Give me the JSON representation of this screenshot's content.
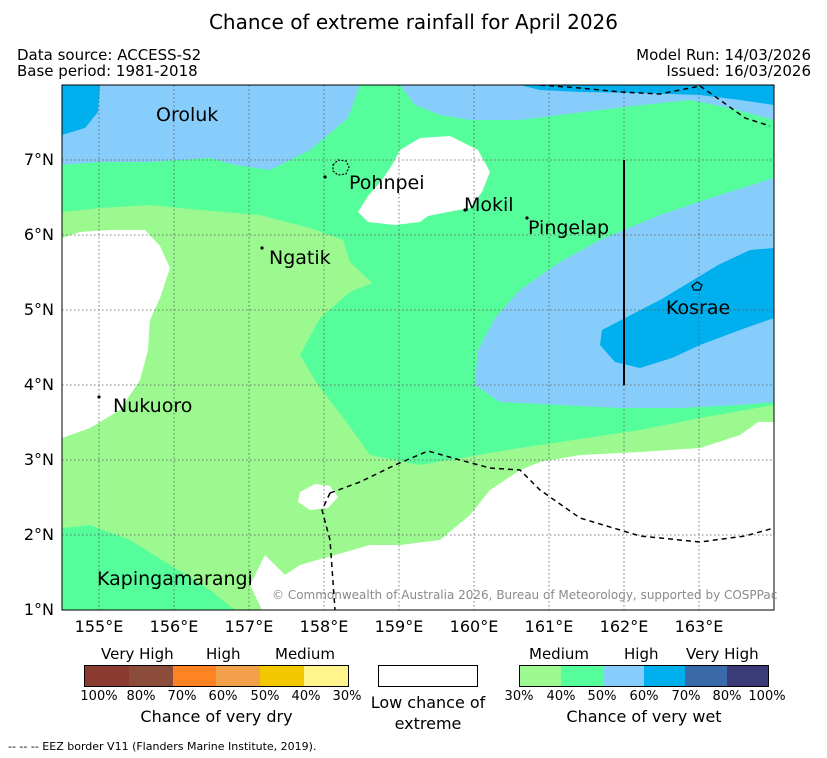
{
  "title": "Chance of extreme rainfall for April 2026",
  "header": {
    "data_source": "Data source: ACCESS-S2",
    "base_period": "Base period: 1981-2018",
    "model_run": "Model Run: 14/03/2026",
    "issued": "Issued: 16/03/2026"
  },
  "map": {
    "lat_labels": [
      "7°N",
      "6°N",
      "5°N",
      "4°N",
      "3°N",
      "2°N",
      "1°N"
    ],
    "lon_labels": [
      "155°E",
      "156°E",
      "157°E",
      "158°E",
      "159°E",
      "160°E",
      "161°E",
      "162°E",
      "163°E"
    ],
    "places": {
      "oroluk": "Oroluk",
      "pohnpei": "Pohnpei",
      "mokil": "Mokil",
      "pingelap": "Pingelap",
      "ngatik": "Ngatik",
      "kosrae": "Kosrae",
      "nukuoro": "Nukuoro",
      "kapingamarangi": "Kapingamarangi"
    },
    "copyright": "© Commonwealth of Australia 2026, Bureau of Meteorology, supported by COSPPac",
    "colors": {
      "wet_30_40": "#9bf98f",
      "wet_40_50": "#56fd9b",
      "wet_50_60": "#87cdfb",
      "wet_60_70": "#00b0ee",
      "low": "#ffffff"
    }
  },
  "legend": {
    "dry": {
      "headers": [
        "Very High",
        "High",
        "Medium"
      ],
      "ticks": [
        "100%",
        "80%",
        "70%",
        "60%",
        "50%",
        "40%",
        "30%"
      ],
      "caption": "Chance of very dry",
      "colors": [
        "#8b3a32",
        "#8b4c3c",
        "#ff8421",
        "#f3a04b",
        "#f3c800",
        "#fff58c"
      ]
    },
    "low": {
      "caption": "Low chance of extreme"
    },
    "wet": {
      "headers": [
        "Medium",
        "High",
        "Very High"
      ],
      "ticks": [
        "30%",
        "40%",
        "50%",
        "60%",
        "70%",
        "80%",
        "100%"
      ],
      "caption": "Chance of very wet",
      "colors": [
        "#9bf98f",
        "#56fd9b",
        "#87cdfb",
        "#00b0ee",
        "#3a6aaa",
        "#3b3b78"
      ]
    }
  },
  "footer": {
    "eez_note": "--  --  -- EEZ border V11 (Flanders Marine Institute, 2019)."
  }
}
